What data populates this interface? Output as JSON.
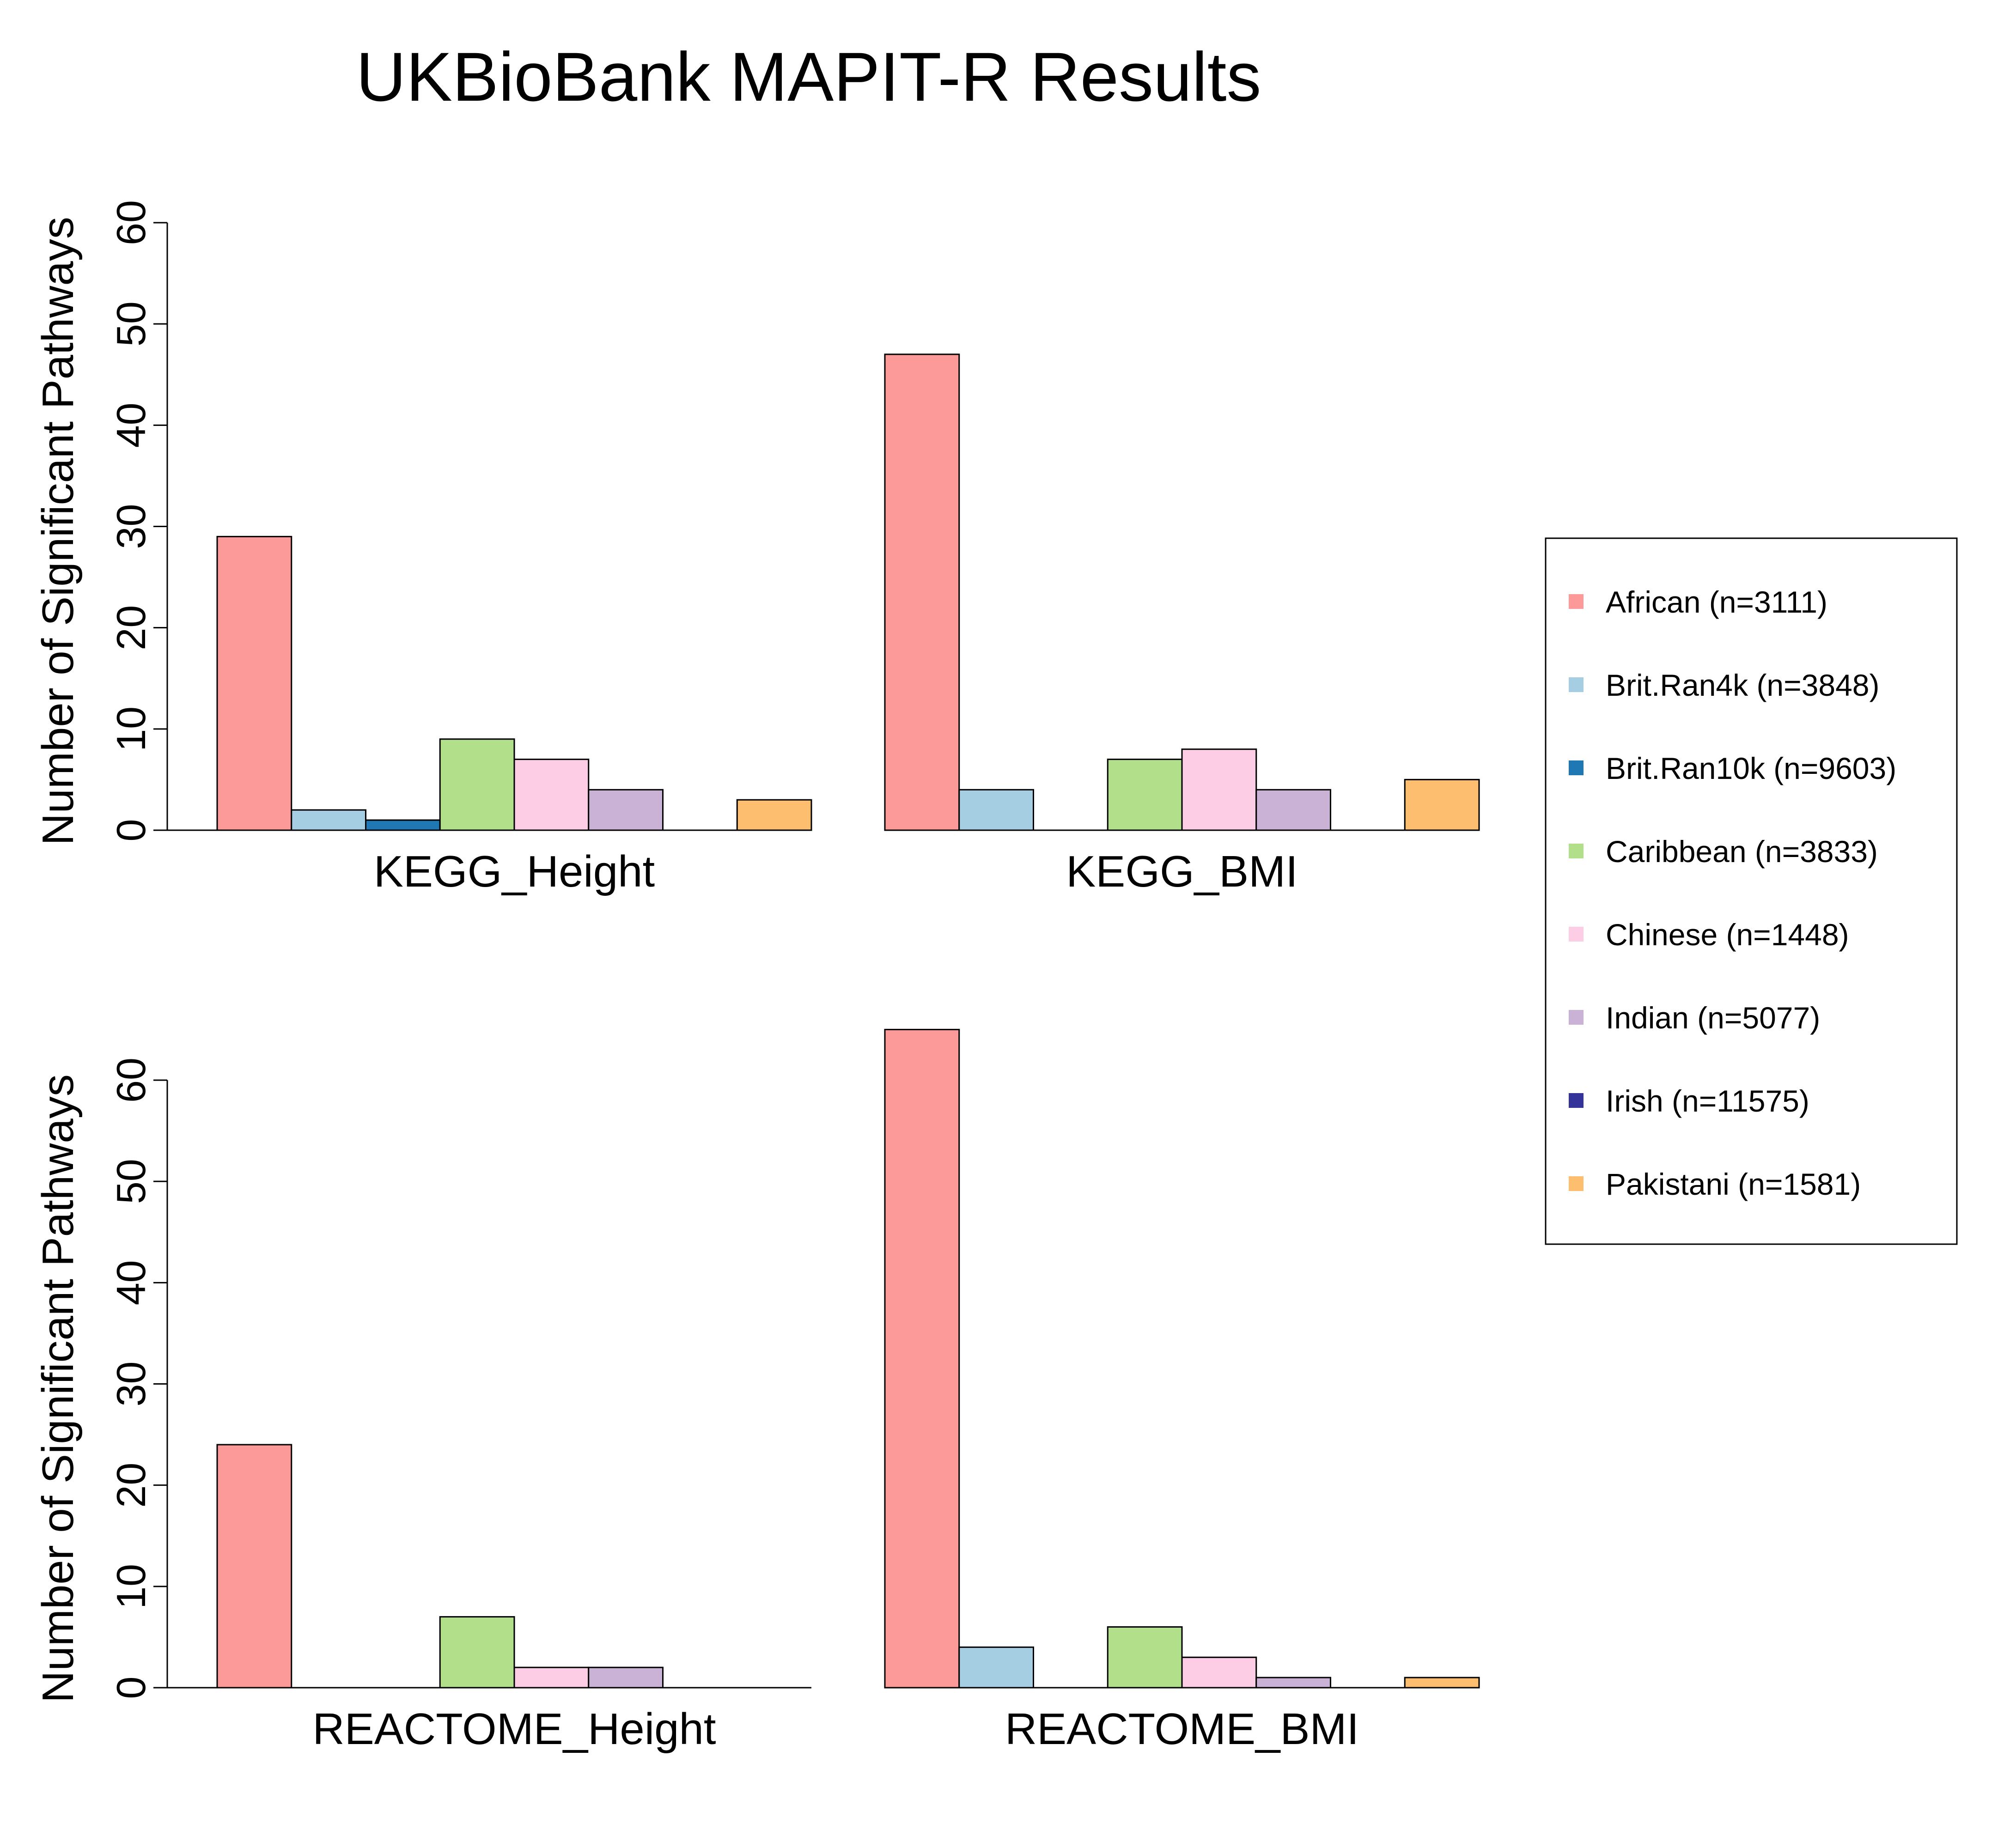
{
  "figure": {
    "title": "UKBioBank MAPIT-R Results"
  },
  "legend": {
    "position": "right",
    "items": [
      {
        "label": "African (n=3111)",
        "color": "#FB9A99"
      },
      {
        "label": "Brit.Ran4k (n=3848)",
        "color": "#A6CEE3"
      },
      {
        "label": "Brit.Ran10k (n=9603)",
        "color": "#1F78B4"
      },
      {
        "label": "Caribbean (n=3833)",
        "color": "#B2DF8A"
      },
      {
        "label": "Chinese (n=1448)",
        "color": "#FCCDE5"
      },
      {
        "label": "Indian (n=5077)",
        "color": "#CAB2D6"
      },
      {
        "label": "Irish (n=11575)",
        "color": "#333399"
      },
      {
        "label": "Pakistani (n=1581)",
        "color": "#FDBF6F"
      }
    ]
  },
  "chart_data": [
    {
      "type": "bar",
      "ylabel": "Number of Significant Pathways",
      "ylim": [
        0,
        60
      ],
      "yticks": [
        "0",
        "10",
        "20",
        "30",
        "40",
        "50",
        "60"
      ],
      "groups": [
        {
          "label": "KEGG_Height",
          "values": [
            29,
            2,
            1,
            9,
            7,
            4,
            0,
            3
          ]
        },
        {
          "label": "KEGG_BMI",
          "values": [
            47,
            4,
            0,
            7,
            8,
            4,
            0,
            5
          ]
        }
      ],
      "grid": false
    },
    {
      "type": "bar",
      "ylabel": "Number of Significant Pathways",
      "ylim": [
        0,
        60
      ],
      "yticks": [
        "0",
        "10",
        "20",
        "30",
        "40",
        "50",
        "60"
      ],
      "groups": [
        {
          "label": "REACTOME_Height",
          "values": [
            24,
            0,
            0,
            7,
            2,
            2,
            0,
            0
          ]
        },
        {
          "label": "REACTOME_BMI",
          "values": [
            65,
            4,
            0,
            6,
            3,
            1,
            0,
            1
          ]
        }
      ],
      "grid": false
    }
  ]
}
